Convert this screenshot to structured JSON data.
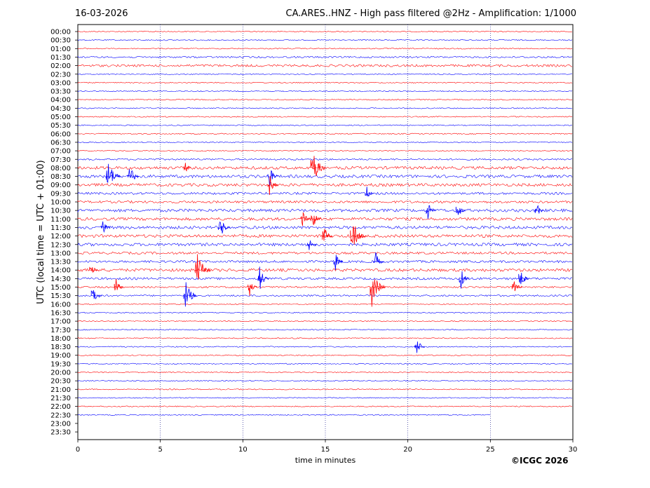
{
  "header": {
    "date": "16-03-2026",
    "title": "CA.ARES..HNZ - High pass filtered @2Hz - Amplification: 1/1000"
  },
  "copyright": "©ICGC 2026",
  "colors": {
    "odd_trace": "#ff0000",
    "even_trace": "#0000ff",
    "grid": "#000080"
  },
  "chart_data": {
    "type": "line",
    "title": "CA.ARES..HNZ - High pass filtered @2Hz - Amplification: 1/1000",
    "xlabel": "time in minutes",
    "ylabel": "UTC (local time = UTC + 01:00)",
    "xlim": [
      0,
      30
    ],
    "x_ticks": [
      0,
      5,
      10,
      15,
      20,
      25,
      30
    ],
    "grid_x": true,
    "row_labels": [
      "00:00",
      "00:30",
      "01:00",
      "01:30",
      "02:00",
      "02:30",
      "03:00",
      "03:30",
      "04:00",
      "04:30",
      "05:00",
      "05:30",
      "06:00",
      "06:30",
      "07:00",
      "07:30",
      "08:00",
      "08:30",
      "09:00",
      "09:30",
      "10:00",
      "10:30",
      "11:00",
      "11:30",
      "12:00",
      "12:30",
      "13:00",
      "13:30",
      "14:00",
      "14:30",
      "15:00",
      "15:30",
      "16:00",
      "16:30",
      "17:00",
      "17:30",
      "18:00",
      "18:30",
      "19:00",
      "19:30",
      "20:00",
      "20:30",
      "21:00",
      "21:30",
      "22:00",
      "22:30",
      "23:00",
      "23:30"
    ],
    "last_trace_end_minute": 25,
    "row_noise_level": [
      1,
      1,
      1,
      2,
      3,
      1,
      1,
      1,
      1,
      1,
      1,
      1,
      1,
      1,
      1,
      2,
      4,
      4,
      4,
      3,
      3,
      4,
      4,
      4,
      4,
      4,
      3,
      3,
      4,
      3,
      2,
      2,
      1,
      1,
      1,
      1,
      1,
      1,
      1,
      1,
      1,
      1,
      1,
      1,
      1,
      1,
      0,
      0
    ],
    "events": [
      {
        "row": 16,
        "minute": 14.2,
        "amplitude": 1.0
      },
      {
        "row": 16,
        "minute": 6.5,
        "amplitude": 0.2
      },
      {
        "row": 17,
        "minute": 1.8,
        "amplitude": 0.9
      },
      {
        "row": 17,
        "minute": 3.1,
        "amplitude": 0.6
      },
      {
        "row": 17,
        "minute": 11.6,
        "amplitude": 0.5
      },
      {
        "row": 18,
        "minute": 11.6,
        "amplitude": 0.5
      },
      {
        "row": 19,
        "minute": 17.5,
        "amplitude": 0.3
      },
      {
        "row": 21,
        "minute": 21.2,
        "amplitude": 0.4
      },
      {
        "row": 21,
        "minute": 23.0,
        "amplitude": 0.4
      },
      {
        "row": 21,
        "minute": 27.8,
        "amplitude": 0.3
      },
      {
        "row": 22,
        "minute": 13.6,
        "amplitude": 0.4
      },
      {
        "row": 22,
        "minute": 14.2,
        "amplitude": 0.5
      },
      {
        "row": 23,
        "minute": 1.5,
        "amplitude": 0.4
      },
      {
        "row": 23,
        "minute": 8.6,
        "amplitude": 0.6
      },
      {
        "row": 24,
        "minute": 14.9,
        "amplitude": 0.5
      },
      {
        "row": 24,
        "minute": 16.6,
        "amplitude": 1.0
      },
      {
        "row": 25,
        "minute": 14.0,
        "amplitude": 0.3
      },
      {
        "row": 27,
        "minute": 18.0,
        "amplitude": 0.5
      },
      {
        "row": 27,
        "minute": 15.6,
        "amplitude": 0.4
      },
      {
        "row": 28,
        "minute": 0.8,
        "amplitude": 0.4
      },
      {
        "row": 28,
        "minute": 7.2,
        "amplitude": 1.0
      },
      {
        "row": 29,
        "minute": 11.0,
        "amplitude": 0.6
      },
      {
        "row": 29,
        "minute": 23.2,
        "amplitude": 0.5
      },
      {
        "row": 29,
        "minute": 26.8,
        "amplitude": 0.5
      },
      {
        "row": 30,
        "minute": 17.8,
        "amplitude": 1.0
      },
      {
        "row": 30,
        "minute": 2.3,
        "amplitude": 0.4
      },
      {
        "row": 30,
        "minute": 10.4,
        "amplitude": 0.4
      },
      {
        "row": 30,
        "minute": 26.4,
        "amplitude": 0.5
      },
      {
        "row": 31,
        "minute": 6.5,
        "amplitude": 0.8
      },
      {
        "row": 31,
        "minute": 0.9,
        "amplitude": 0.5
      },
      {
        "row": 37,
        "minute": 20.5,
        "amplitude": 0.5
      }
    ]
  }
}
